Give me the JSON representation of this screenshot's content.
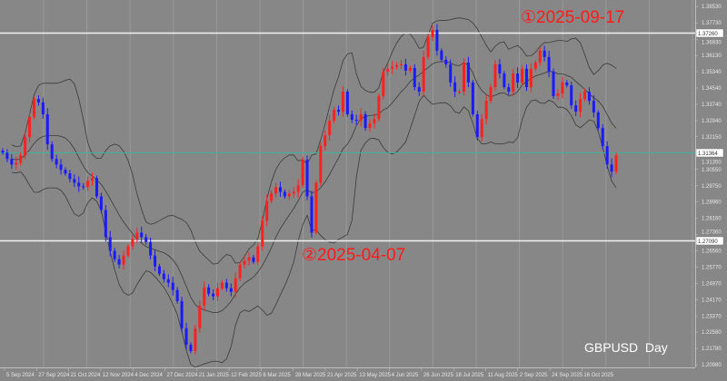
{
  "chart_data": {
    "type": "candlestick",
    "symbol_label": "GBPUSD  Day",
    "indicator": "bollinger-bands",
    "colors": {
      "background": "#878787",
      "up": "#ff2020",
      "down": "#1a1aff",
      "bands": "#3a3a3a",
      "hline": "#f2f2f2",
      "current_price_line": "#3cb39a",
      "annotation": "#ff1a1a"
    },
    "ylim": [
      1.2085,
      1.3885
    ],
    "y_ticks": [
      "1.38530",
      "1.37730",
      "1.36930",
      "1.36130",
      "1.35340",
      "1.34540",
      "1.33740",
      "1.32940",
      "1.32150",
      "1.31350",
      "1.30550",
      "1.29750",
      "1.28960",
      "1.28160",
      "1.27360",
      "1.26560",
      "1.25770",
      "1.24970",
      "1.24170",
      "1.23370",
      "1.22580",
      "1.21780",
      "1.20980"
    ],
    "x_ticks": [
      "5 Sep 2024",
      "27 Sep 2024",
      "21 Oct 2024",
      "12 Nov 2024",
      "4 Dec 2024",
      "27 Dec 2024",
      "21 Jan 2025",
      "12 Feb 2025",
      "6 Mar 2025",
      "28 Mar 2025",
      "21 Apr 2025",
      "13 May 2025",
      "4 Jun 2025",
      "26 Jun 2025",
      "18 Jul 2025",
      "11 Aug 2025",
      "2 Sep 2025",
      "24 Sep 2025",
      "16 Oct 2025"
    ],
    "closes": [
      1.3137,
      1.3106,
      1.3079,
      1.3088,
      1.3124,
      1.3213,
      1.3311,
      1.34,
      1.3383,
      1.3325,
      1.3178,
      1.3106,
      1.3079,
      1.3053,
      1.3035,
      1.3008,
      1.299,
      1.2972,
      1.2968,
      1.2999,
      1.3012,
      1.2923,
      1.2856,
      1.2723,
      1.2656,
      1.2615,
      1.2589,
      1.2633,
      1.2678,
      1.2714,
      1.2745,
      1.2723,
      1.27,
      1.2633,
      1.258,
      1.2544,
      1.2517,
      1.25,
      1.2464,
      1.241,
      1.2277,
      1.2196,
      1.2165,
      1.2277,
      1.2388,
      1.2477,
      1.2446,
      1.2433,
      1.2473,
      1.25,
      1.2473,
      1.2455,
      1.2522,
      1.2589,
      1.2607,
      1.2624,
      1.2602,
      1.2678,
      1.2803,
      1.2901,
      1.2937,
      1.2968,
      1.2945,
      1.2923,
      1.2937,
      1.2945,
      1.2977,
      1.3102,
      1.2923,
      1.2745,
      1.299,
      1.3169,
      1.3222,
      1.3293,
      1.3347,
      1.3338,
      1.3436,
      1.3325,
      1.3298,
      1.3293,
      1.3325,
      1.3258,
      1.328,
      1.3302,
      1.3414,
      1.3534,
      1.3548,
      1.3557,
      1.3565,
      1.357,
      1.3539,
      1.3552,
      1.3458,
      1.3436,
      1.3606,
      1.3704,
      1.3739,
      1.3637,
      1.3592,
      1.357,
      1.3481,
      1.3436,
      1.3436,
      1.3579,
      1.3481,
      1.3325,
      1.3213,
      1.3302,
      1.3391,
      1.3458,
      1.357,
      1.3525,
      1.3458,
      1.3436,
      1.3525,
      1.3481,
      1.3548,
      1.3458,
      1.3548,
      1.3579,
      1.3637,
      1.3606,
      1.3534,
      1.3414,
      1.3427,
      1.3481,
      1.3467,
      1.3369,
      1.3338,
      1.34,
      1.3436,
      1.3391,
      1.3334,
      1.3258,
      1.3169,
      1.3079,
      1.3044,
      1.3124
    ],
    "horizontal_lines": [
      {
        "price": 1.3726,
        "label": "1.37260",
        "kind": "hline"
      },
      {
        "price": 1.31364,
        "label": "1.31364",
        "kind": "current_price_line"
      },
      {
        "price": 1.2709,
        "label": "1.27090",
        "kind": "hline"
      }
    ],
    "annotations": [
      {
        "text": "①2025-09-17"
      },
      {
        "text": "②2025-04-07"
      }
    ]
  }
}
